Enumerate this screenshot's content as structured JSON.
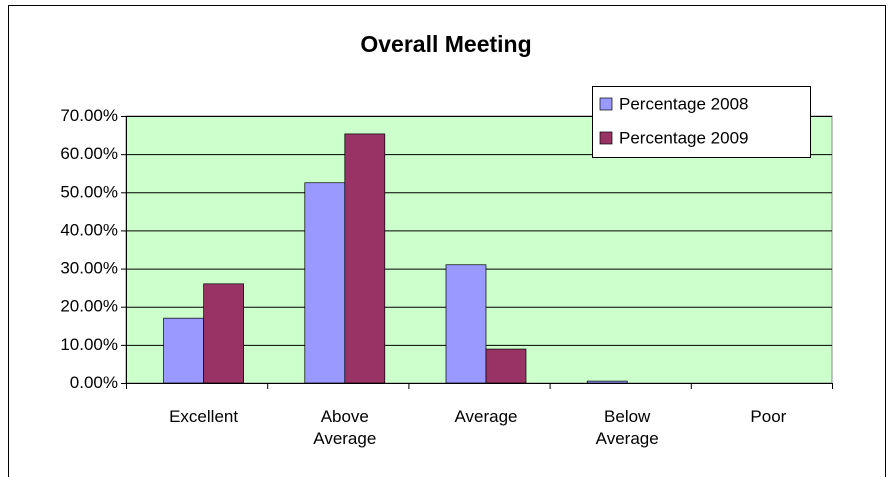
{
  "chart_data": {
    "type": "bar",
    "title": "Overall Meeting",
    "categories": [
      "Excellent",
      "Above Average",
      "Average",
      "Below Average",
      "Poor"
    ],
    "series": [
      {
        "name": "Percentage 2008",
        "color": "#9999ff",
        "values": [
          17,
          52.5,
          31,
          0.5,
          0
        ]
      },
      {
        "name": "Percentage 2009",
        "color": "#993366",
        "values": [
          26,
          65.3,
          8.9,
          0,
          0
        ]
      }
    ],
    "ylim": [
      0,
      70
    ],
    "yticks": [
      {
        "value": 0,
        "label": "0.00%"
      },
      {
        "value": 10,
        "label": "10.00%"
      },
      {
        "value": 20,
        "label": "20.00%"
      },
      {
        "value": 30,
        "label": "30.00%"
      },
      {
        "value": 40,
        "label": "40.00%"
      },
      {
        "value": 50,
        "label": "50.00%"
      },
      {
        "value": 60,
        "label": "60.00%"
      },
      {
        "value": 70,
        "label": "70.00%"
      }
    ],
    "grid": true,
    "legend": "top-right",
    "plot_background": "#ccffcc"
  }
}
